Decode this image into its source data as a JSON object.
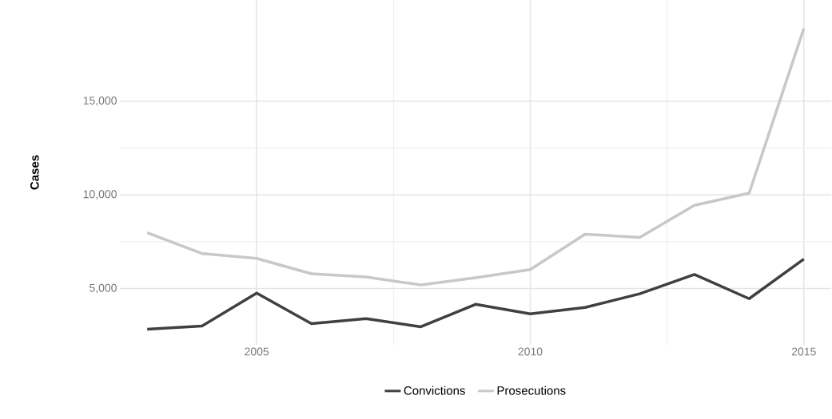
{
  "chart_data": {
    "type": "line",
    "ylabel": "Cases",
    "x": [
      2003,
      2004,
      2005,
      2006,
      2007,
      2008,
      2009,
      2010,
      2011,
      2012,
      2013,
      2014,
      2015
    ],
    "series": [
      {
        "name": "Convictions",
        "color": "#404040",
        "values": [
          2830,
          3000,
          4760,
          3130,
          3390,
          2960,
          4160,
          3650,
          3990,
          4720,
          5750,
          4460,
          6570
        ]
      },
      {
        "name": "Prosecutions",
        "color": "#c8c8c8",
        "values": [
          7980,
          6870,
          6610,
          5790,
          5620,
          5190,
          5580,
          6010,
          7900,
          7730,
          9440,
          10090,
          18880
        ]
      }
    ],
    "xlim": [
      2002.5,
      2015.5
    ],
    "ylim": [
      2000,
      20400
    ],
    "xticks": [
      2005,
      2010,
      2015
    ],
    "yticks": [
      {
        "value": 5000,
        "label": "5,000"
      },
      {
        "value": 10000,
        "label": "10,000"
      },
      {
        "value": 15000,
        "label": "15,000"
      }
    ],
    "grid": true,
    "legend": "bottom",
    "marker": "none",
    "line_style": "solid"
  }
}
